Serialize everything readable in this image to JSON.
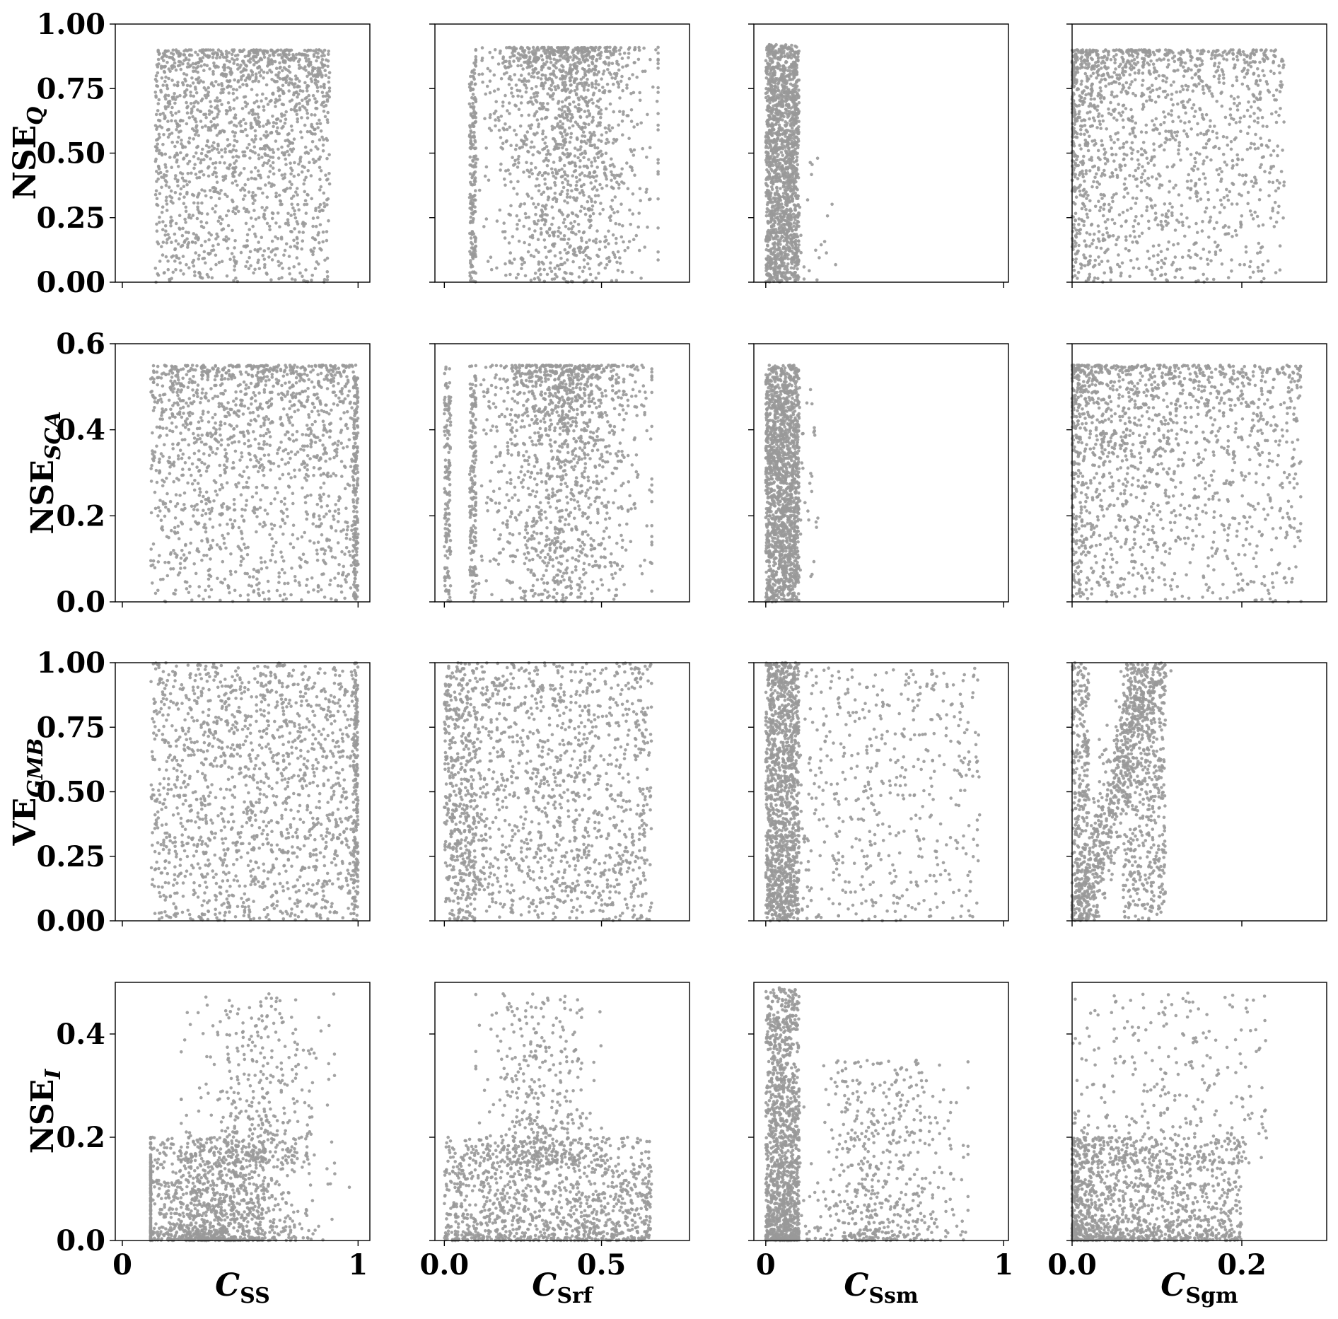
{
  "chart_data": {
    "type": "scatter",
    "layout": "4x4 grid",
    "point_color": "#999999",
    "point_opacity": 0.9,
    "columns": [
      {
        "label_main": "C",
        "label_sub": "SS",
        "xlim": [
          -0.03,
          1.05
        ],
        "ticks": [
          0,
          1
        ],
        "tick_labels": [
          "0",
          "1"
        ]
      },
      {
        "label_main": "C",
        "label_sub": "Srf",
        "xlim": [
          -0.03,
          0.78
        ],
        "ticks": [
          0.0,
          0.5
        ],
        "tick_labels": [
          "0.0",
          "0.5"
        ]
      },
      {
        "label_main": "C",
        "label_sub": "Ssm",
        "xlim": [
          -0.05,
          1.02
        ],
        "ticks": [
          0,
          1
        ],
        "tick_labels": [
          "0",
          "1"
        ]
      },
      {
        "label_main": "C",
        "label_sub": "Sgm",
        "xlim": [
          0.0,
          0.3
        ],
        "ticks": [
          0.0,
          0.2
        ],
        "tick_labels": [
          "0.0",
          "0.2"
        ]
      }
    ],
    "rows": [
      {
        "label_main": "NSE",
        "label_sub": "Q",
        "ylim": [
          0,
          1.0
        ],
        "ticks": [
          0,
          0.25,
          0.5,
          0.75,
          1.0
        ],
        "tick_labels": [
          "0.00",
          "0.25",
          "0.50",
          "0.75",
          "1.00"
        ]
      },
      {
        "label_main": "NSE",
        "label_sub": "SCA",
        "ylim": [
          0,
          0.6
        ],
        "ticks": [
          0,
          0.2,
          0.4,
          0.6
        ],
        "tick_labels": [
          "0.0",
          "0.2",
          "0.4",
          "0.6"
        ]
      },
      {
        "label_main": "VE",
        "label_sub": "GMB",
        "ylim": [
          0,
          1.0
        ],
        "ticks": [
          0,
          0.25,
          0.5,
          0.75,
          1.0
        ],
        "tick_labels": [
          "0.00",
          "0.25",
          "0.50",
          "0.75",
          "1.00"
        ]
      },
      {
        "label_main": "NSE",
        "label_sub": "I",
        "ylim": [
          0,
          0.5
        ],
        "ticks": [
          0,
          0.2,
          0.4
        ],
        "tick_labels": [
          "0.0",
          "0.2",
          "0.4"
        ]
      }
    ],
    "panels": [
      [
        {
          "clusters": [
            {
              "x": [
                0.14,
                0.88
              ],
              "y": [
                0.0,
                0.9
              ],
              "dx": "uniform",
              "dy": "beta-high",
              "n": 1700
            }
          ]
        },
        {
          "clusters": [
            {
              "x": [
                0.08,
                0.1
              ],
              "y": [
                0.0,
                0.85
              ],
              "dx": "uniform",
              "dy": "uniform",
              "n": 180
            },
            {
              "x": [
                0.1,
                0.68
              ],
              "y": [
                0.0,
                0.91
              ],
              "dx": "normal-center",
              "dy": "beta-high",
              "n": 1500
            }
          ]
        },
        {
          "clusters": [
            {
              "x": [
                0.0,
                0.14
              ],
              "y": [
                0.0,
                0.92
              ],
              "dx": "uniform",
              "dy": "uniform",
              "n": 1600
            },
            {
              "x": [
                0.14,
                0.3
              ],
              "y": [
                0.0,
                0.5
              ],
              "dx": "uniform",
              "dy": "uniform",
              "n": 20
            }
          ]
        },
        {
          "clusters": [
            {
              "x": [
                0.0,
                0.25
              ],
              "y": [
                0.0,
                0.9
              ],
              "dx": "exp-left",
              "dy": "beta-high",
              "n": 1600
            }
          ]
        }
      ],
      [
        {
          "clusters": [
            {
              "x": [
                0.12,
                0.98
              ],
              "y": [
                0.0,
                0.55
              ],
              "dx": "uniform",
              "dy": "beta-high",
              "n": 1500
            },
            {
              "x": [
                0.98,
                1.0
              ],
              "y": [
                0.0,
                0.55
              ],
              "dx": "uniform",
              "dy": "uniform",
              "n": 200
            }
          ]
        },
        {
          "clusters": [
            {
              "x": [
                0.0,
                0.02
              ],
              "y": [
                0.0,
                0.55
              ],
              "dx": "uniform",
              "dy": "uniform",
              "n": 150
            },
            {
              "x": [
                0.08,
                0.1
              ],
              "y": [
                0.0,
                0.55
              ],
              "dx": "uniform",
              "dy": "uniform",
              "n": 150
            },
            {
              "x": [
                0.1,
                0.66
              ],
              "y": [
                0.0,
                0.55
              ],
              "dx": "normal-center",
              "dy": "beta-high",
              "n": 1400
            }
          ]
        },
        {
          "clusters": [
            {
              "x": [
                0.0,
                0.14
              ],
              "y": [
                0.0,
                0.55
              ],
              "dx": "uniform",
              "dy": "uniform",
              "n": 1600
            },
            {
              "x": [
                0.14,
                0.22
              ],
              "y": [
                0.05,
                0.5
              ],
              "dx": "uniform",
              "dy": "uniform",
              "n": 30
            }
          ]
        },
        {
          "clusters": [
            {
              "x": [
                0.0,
                0.27
              ],
              "y": [
                0.0,
                0.55
              ],
              "dx": "exp-left",
              "dy": "beta-high",
              "n": 1600
            }
          ]
        }
      ],
      [
        {
          "clusters": [
            {
              "x": [
                0.12,
                0.98
              ],
              "y": [
                0.0,
                1.0
              ],
              "dx": "uniform",
              "dy": "uniform",
              "n": 1500
            },
            {
              "x": [
                0.98,
                1.0
              ],
              "y": [
                0.0,
                1.0
              ],
              "dx": "uniform",
              "dy": "uniform",
              "n": 200
            }
          ]
        },
        {
          "clusters": [
            {
              "x": [
                0.0,
                0.1
              ],
              "y": [
                0.0,
                1.0
              ],
              "dx": "uniform",
              "dy": "uniform",
              "n": 500
            },
            {
              "x": [
                0.1,
                0.66
              ],
              "y": [
                0.0,
                1.0
              ],
              "dx": "uniform",
              "dy": "uniform",
              "n": 1200
            }
          ]
        },
        {
          "clusters": [
            {
              "x": [
                0.0,
                0.14
              ],
              "y": [
                0.0,
                1.0
              ],
              "dx": "uniform",
              "dy": "uniform",
              "n": 1300
            },
            {
              "x": [
                0.14,
                0.9
              ],
              "y": [
                0.0,
                0.98
              ],
              "dx": "uniform",
              "dy": "uniform",
              "n": 500
            }
          ]
        },
        {
          "clusters": [
            {
              "x": [
                0.0,
                0.02
              ],
              "y": [
                0.0,
                1.0
              ],
              "dx": "uniform",
              "dy": "uniform",
              "n": 300
            },
            {
              "x": [
                0.01,
                0.09
              ],
              "y": [
                0.0,
                1.0
              ],
              "dx": "diagonal",
              "dy": "uniform",
              "n": 700
            },
            {
              "x": [
                0.06,
                0.11
              ],
              "y": [
                0.0,
                1.0
              ],
              "dx": "uniform",
              "dy": "uniform",
              "n": 500
            }
          ]
        }
      ],
      [
        {
          "clusters": [
            {
              "x": [
                0.12,
                0.98
              ],
              "y": [
                0.0,
                0.2
              ],
              "dx": "normal-left",
              "dy": "beta-low",
              "n": 1300
            },
            {
              "x": [
                0.25,
                0.9
              ],
              "y": [
                0.15,
                0.48
              ],
              "dx": "normal-center",
              "dy": "beta-low",
              "n": 400
            }
          ]
        },
        {
          "clusters": [
            {
              "x": [
                0.0,
                0.66
              ],
              "y": [
                0.0,
                0.2
              ],
              "dx": "uniform",
              "dy": "beta-low",
              "n": 1200
            },
            {
              "x": [
                0.1,
                0.5
              ],
              "y": [
                0.15,
                0.48
              ],
              "dx": "normal-center",
              "dy": "beta-low",
              "n": 400
            }
          ]
        },
        {
          "clusters": [
            {
              "x": [
                0.0,
                0.14
              ],
              "y": [
                0.0,
                0.49
              ],
              "dx": "uniform",
              "dy": "beta-low",
              "n": 1300
            },
            {
              "x": [
                0.14,
                0.85
              ],
              "y": [
                0.0,
                0.35
              ],
              "dx": "normal-center",
              "dy": "beta-low",
              "n": 600
            }
          ]
        },
        {
          "clusters": [
            {
              "x": [
                0.0,
                0.2
              ],
              "y": [
                0.0,
                0.2
              ],
              "dx": "exp-left",
              "dy": "beta-low",
              "n": 1300
            },
            {
              "x": [
                0.0,
                0.23
              ],
              "y": [
                0.15,
                0.48
              ],
              "dx": "uniform",
              "dy": "beta-low",
              "n": 350
            }
          ]
        }
      ]
    ]
  }
}
